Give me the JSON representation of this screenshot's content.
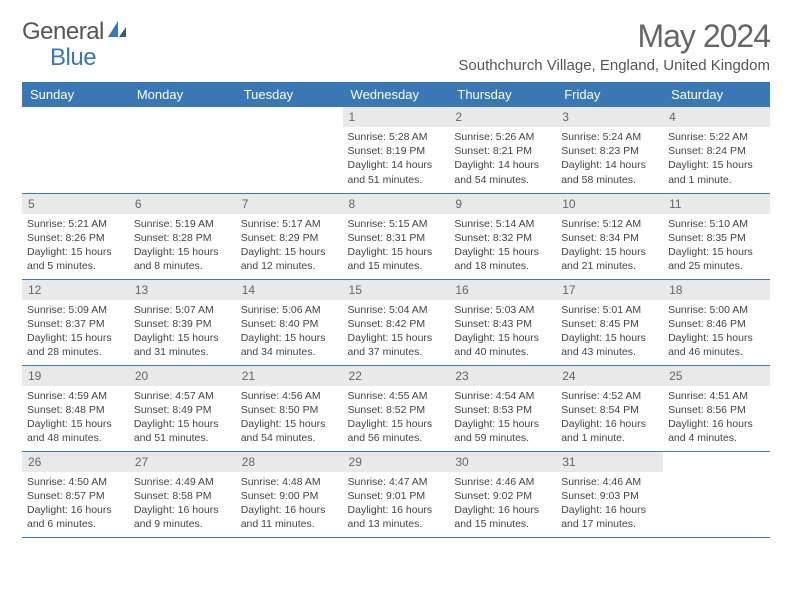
{
  "logo": {
    "text1": "General",
    "text2": "Blue"
  },
  "title": "May 2024",
  "location": "Southchurch Village, England, United Kingdom",
  "colors": {
    "header_bg": "#3a78b5",
    "header_text": "#ffffff",
    "daynum_bg": "#e9e9e9",
    "border": "#3a78b5",
    "logo_blue": "#3a78b5"
  },
  "weekdays": [
    "Sunday",
    "Monday",
    "Tuesday",
    "Wednesday",
    "Thursday",
    "Friday",
    "Saturday"
  ],
  "weeks": [
    [
      {
        "n": "",
        "sr": "",
        "ss": "",
        "dl": ""
      },
      {
        "n": "",
        "sr": "",
        "ss": "",
        "dl": ""
      },
      {
        "n": "",
        "sr": "",
        "ss": "",
        "dl": ""
      },
      {
        "n": "1",
        "sr": "Sunrise: 5:28 AM",
        "ss": "Sunset: 8:19 PM",
        "dl": "Daylight: 14 hours and 51 minutes."
      },
      {
        "n": "2",
        "sr": "Sunrise: 5:26 AM",
        "ss": "Sunset: 8:21 PM",
        "dl": "Daylight: 14 hours and 54 minutes."
      },
      {
        "n": "3",
        "sr": "Sunrise: 5:24 AM",
        "ss": "Sunset: 8:23 PM",
        "dl": "Daylight: 14 hours and 58 minutes."
      },
      {
        "n": "4",
        "sr": "Sunrise: 5:22 AM",
        "ss": "Sunset: 8:24 PM",
        "dl": "Daylight: 15 hours and 1 minute."
      }
    ],
    [
      {
        "n": "5",
        "sr": "Sunrise: 5:21 AM",
        "ss": "Sunset: 8:26 PM",
        "dl": "Daylight: 15 hours and 5 minutes."
      },
      {
        "n": "6",
        "sr": "Sunrise: 5:19 AM",
        "ss": "Sunset: 8:28 PM",
        "dl": "Daylight: 15 hours and 8 minutes."
      },
      {
        "n": "7",
        "sr": "Sunrise: 5:17 AM",
        "ss": "Sunset: 8:29 PM",
        "dl": "Daylight: 15 hours and 12 minutes."
      },
      {
        "n": "8",
        "sr": "Sunrise: 5:15 AM",
        "ss": "Sunset: 8:31 PM",
        "dl": "Daylight: 15 hours and 15 minutes."
      },
      {
        "n": "9",
        "sr": "Sunrise: 5:14 AM",
        "ss": "Sunset: 8:32 PM",
        "dl": "Daylight: 15 hours and 18 minutes."
      },
      {
        "n": "10",
        "sr": "Sunrise: 5:12 AM",
        "ss": "Sunset: 8:34 PM",
        "dl": "Daylight: 15 hours and 21 minutes."
      },
      {
        "n": "11",
        "sr": "Sunrise: 5:10 AM",
        "ss": "Sunset: 8:35 PM",
        "dl": "Daylight: 15 hours and 25 minutes."
      }
    ],
    [
      {
        "n": "12",
        "sr": "Sunrise: 5:09 AM",
        "ss": "Sunset: 8:37 PM",
        "dl": "Daylight: 15 hours and 28 minutes."
      },
      {
        "n": "13",
        "sr": "Sunrise: 5:07 AM",
        "ss": "Sunset: 8:39 PM",
        "dl": "Daylight: 15 hours and 31 minutes."
      },
      {
        "n": "14",
        "sr": "Sunrise: 5:06 AM",
        "ss": "Sunset: 8:40 PM",
        "dl": "Daylight: 15 hours and 34 minutes."
      },
      {
        "n": "15",
        "sr": "Sunrise: 5:04 AM",
        "ss": "Sunset: 8:42 PM",
        "dl": "Daylight: 15 hours and 37 minutes."
      },
      {
        "n": "16",
        "sr": "Sunrise: 5:03 AM",
        "ss": "Sunset: 8:43 PM",
        "dl": "Daylight: 15 hours and 40 minutes."
      },
      {
        "n": "17",
        "sr": "Sunrise: 5:01 AM",
        "ss": "Sunset: 8:45 PM",
        "dl": "Daylight: 15 hours and 43 minutes."
      },
      {
        "n": "18",
        "sr": "Sunrise: 5:00 AM",
        "ss": "Sunset: 8:46 PM",
        "dl": "Daylight: 15 hours and 46 minutes."
      }
    ],
    [
      {
        "n": "19",
        "sr": "Sunrise: 4:59 AM",
        "ss": "Sunset: 8:48 PM",
        "dl": "Daylight: 15 hours and 48 minutes."
      },
      {
        "n": "20",
        "sr": "Sunrise: 4:57 AM",
        "ss": "Sunset: 8:49 PM",
        "dl": "Daylight: 15 hours and 51 minutes."
      },
      {
        "n": "21",
        "sr": "Sunrise: 4:56 AM",
        "ss": "Sunset: 8:50 PM",
        "dl": "Daylight: 15 hours and 54 minutes."
      },
      {
        "n": "22",
        "sr": "Sunrise: 4:55 AM",
        "ss": "Sunset: 8:52 PM",
        "dl": "Daylight: 15 hours and 56 minutes."
      },
      {
        "n": "23",
        "sr": "Sunrise: 4:54 AM",
        "ss": "Sunset: 8:53 PM",
        "dl": "Daylight: 15 hours and 59 minutes."
      },
      {
        "n": "24",
        "sr": "Sunrise: 4:52 AM",
        "ss": "Sunset: 8:54 PM",
        "dl": "Daylight: 16 hours and 1 minute."
      },
      {
        "n": "25",
        "sr": "Sunrise: 4:51 AM",
        "ss": "Sunset: 8:56 PM",
        "dl": "Daylight: 16 hours and 4 minutes."
      }
    ],
    [
      {
        "n": "26",
        "sr": "Sunrise: 4:50 AM",
        "ss": "Sunset: 8:57 PM",
        "dl": "Daylight: 16 hours and 6 minutes."
      },
      {
        "n": "27",
        "sr": "Sunrise: 4:49 AM",
        "ss": "Sunset: 8:58 PM",
        "dl": "Daylight: 16 hours and 9 minutes."
      },
      {
        "n": "28",
        "sr": "Sunrise: 4:48 AM",
        "ss": "Sunset: 9:00 PM",
        "dl": "Daylight: 16 hours and 11 minutes."
      },
      {
        "n": "29",
        "sr": "Sunrise: 4:47 AM",
        "ss": "Sunset: 9:01 PM",
        "dl": "Daylight: 16 hours and 13 minutes."
      },
      {
        "n": "30",
        "sr": "Sunrise: 4:46 AM",
        "ss": "Sunset: 9:02 PM",
        "dl": "Daylight: 16 hours and 15 minutes."
      },
      {
        "n": "31",
        "sr": "Sunrise: 4:46 AM",
        "ss": "Sunset: 9:03 PM",
        "dl": "Daylight: 16 hours and 17 minutes."
      },
      {
        "n": "",
        "sr": "",
        "ss": "",
        "dl": ""
      }
    ]
  ]
}
